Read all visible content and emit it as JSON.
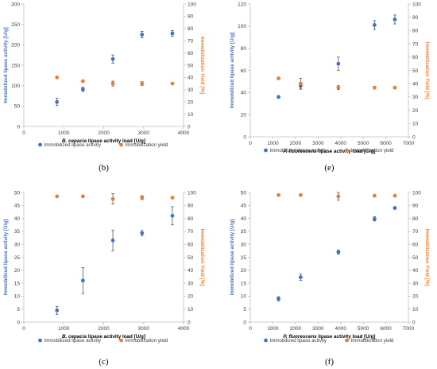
{
  "colors": {
    "activity": "#4472C4",
    "yield": "#ED7D31",
    "axis": "#BFBFBF",
    "tick_text": "#404040",
    "title_text": "#000000"
  },
  "chart_data": [
    {
      "id": "b",
      "panel_label": "(b)",
      "type": "scatter",
      "xlabel": "B. cepacia lipase activity load [U/g]",
      "xlabel_italic": "B. cepacia",
      "xlabel_rest": " lipase activity load [U/g]",
      "ylabel": "Immobilized lipase activity [U/g]",
      "y2label": "Immobilization Yield [%]",
      "xlim": [
        0,
        4000
      ],
      "xticks": [
        0,
        1000,
        2000,
        3000,
        4000
      ],
      "ylim": [
        0,
        300
      ],
      "yticks": [
        0,
        50,
        100,
        150,
        200,
        250,
        300
      ],
      "y2lim": [
        0,
        100
      ],
      "y2ticks": [
        0,
        10,
        20,
        30,
        40,
        50,
        60,
        70,
        80,
        90,
        100
      ],
      "legend": [
        "Immobilized lipase acitvity",
        "Immobilization yield"
      ],
      "legend_position": "bottom",
      "series": [
        {
          "name": "Immobilized lipase acitvity",
          "axis": "left",
          "x": [
            830,
            1480,
            2230,
            2960,
            3720
          ],
          "y": [
            60,
            91,
            165,
            225,
            228
          ],
          "err": [
            9,
            5,
            10,
            8,
            7
          ],
          "trend": "polynomial"
        },
        {
          "name": "Immobilization yield",
          "axis": "right",
          "x": [
            830,
            1480,
            2230,
            2960,
            3720
          ],
          "y": [
            40,
            37,
            35,
            35,
            35
          ],
          "err": [
            0.5,
            0.5,
            2,
            1.5,
            0.5
          ],
          "trend": "polynomial"
        }
      ]
    },
    {
      "id": "e",
      "panel_label": "(e)",
      "type": "scatter",
      "xlabel": "P. fluorescens lipase activity load [U/g]",
      "xlabel_italic": "P. fluorescens",
      "xlabel_rest": " lipase activity load [U/g]",
      "ylabel": "Immobilized lipase activity [U/g]",
      "y2label": "Immobilization Yield [%]",
      "xlim": [
        0,
        7000
      ],
      "xticks": [
        0,
        1000,
        2000,
        3000,
        4000,
        5000,
        6000,
        7000
      ],
      "ylim": [
        0,
        120
      ],
      "yticks": [
        0,
        20,
        40,
        60,
        80,
        100,
        120
      ],
      "y2lim": [
        0,
        100
      ],
      "y2ticks": [
        0,
        10,
        20,
        30,
        40,
        50,
        60,
        70,
        80,
        90,
        100
      ],
      "legend": [
        "Immobilized lipase acitvity",
        "Immobilization yield"
      ],
      "legend_position": "bottom",
      "series": [
        {
          "name": "Immobilized lipase acitvity",
          "axis": "left",
          "x": [
            1250,
            2230,
            3900,
            5500,
            6400
          ],
          "y": [
            36,
            46,
            66,
            101,
            106
          ],
          "err": [
            1,
            3,
            6,
            4,
            4
          ],
          "trend": "polynomial"
        },
        {
          "name": "Immobilization yield",
          "axis": "right",
          "x": [
            1250,
            2230,
            3900,
            5500,
            6400
          ],
          "y": [
            44,
            40,
            37,
            37,
            37
          ],
          "err": [
            0.5,
            4,
            1.5,
            1,
            0.5
          ],
          "trend": "polynomial"
        }
      ]
    },
    {
      "id": "c",
      "panel_label": "(c)",
      "type": "scatter",
      "xlabel": "B. cepacia lipase activity load [U/g]",
      "xlabel_italic": "B. cepacia",
      "xlabel_rest": " lipase activity load [U/g]",
      "ylabel": "Immobilized lipase activity [U/g]",
      "y2label": "Immobilization Yield [%]",
      "xlim": [
        0,
        4000
      ],
      "xticks": [
        0,
        1000,
        2000,
        3000,
        4000
      ],
      "ylim": [
        0,
        50
      ],
      "yticks": [
        0,
        5,
        10,
        15,
        20,
        25,
        30,
        35,
        40,
        45,
        50
      ],
      "y2lim": [
        0,
        100
      ],
      "y2ticks": [
        0,
        10,
        20,
        30,
        40,
        50,
        60,
        70,
        80,
        90,
        100
      ],
      "legend": [
        "Immobilized lipase acitvity",
        "Immobilization yield"
      ],
      "legend_position": "bottom",
      "series": [
        {
          "name": "Immobilized lipase acitvity",
          "axis": "left",
          "x": [
            830,
            1480,
            2230,
            2960,
            3720
          ],
          "y": [
            4.5,
            16,
            31.5,
            34.3,
            41
          ],
          "err": [
            1.5,
            5,
            4,
            1,
            3.5
          ],
          "trend": "polynomial"
        },
        {
          "name": "Immobilization yield",
          "axis": "right",
          "x": [
            830,
            1480,
            2230,
            2960,
            3720
          ],
          "y": [
            97,
            97,
            95,
            96,
            96
          ],
          "err": [
            0.5,
            0.5,
            4,
            1.5,
            0.5
          ],
          "trend": "polynomial"
        }
      ]
    },
    {
      "id": "f",
      "panel_label": "(f)",
      "type": "scatter",
      "xlabel": "P. fluorescens lipase activity load [U/g]",
      "xlabel_italic": "P. fluorescens",
      "xlabel_rest": " lipase activity load [U/g]",
      "ylabel": "Immobilized lipase activity [U/g]",
      "y2label": "Immobilization Yield [%]",
      "xlim": [
        0,
        7000
      ],
      "xticks": [
        0,
        1000,
        2000,
        3000,
        4000,
        5000,
        6000,
        7000
      ],
      "ylim": [
        0,
        50
      ],
      "yticks": [
        0,
        5,
        10,
        15,
        20,
        25,
        30,
        35,
        40,
        45,
        50
      ],
      "y2lim": [
        0,
        100
      ],
      "y2ticks": [
        0,
        10,
        20,
        30,
        40,
        50,
        60,
        70,
        80,
        90,
        100
      ],
      "legend": [
        "Immobilized lipase acitvity",
        "Immobilization yield"
      ],
      "legend_position": "bottom",
      "series": [
        {
          "name": "Immobilized lipase acitvity",
          "axis": "left",
          "x": [
            1250,
            2230,
            3900,
            5500,
            6400
          ],
          "y": [
            9,
            17.3,
            27,
            39.8,
            44
          ],
          "err": [
            0.8,
            1.2,
            0.8,
            0.8,
            0.5
          ],
          "trend": "linear"
        },
        {
          "name": "Immobilization yield",
          "axis": "right",
          "x": [
            1250,
            2230,
            3900,
            5500,
            6400
          ],
          "y": [
            98,
            98,
            97,
            97.5,
            97.5
          ],
          "err": [
            0.5,
            0.5,
            3,
            0.5,
            0.5
          ],
          "trend": "polynomial"
        }
      ]
    }
  ]
}
